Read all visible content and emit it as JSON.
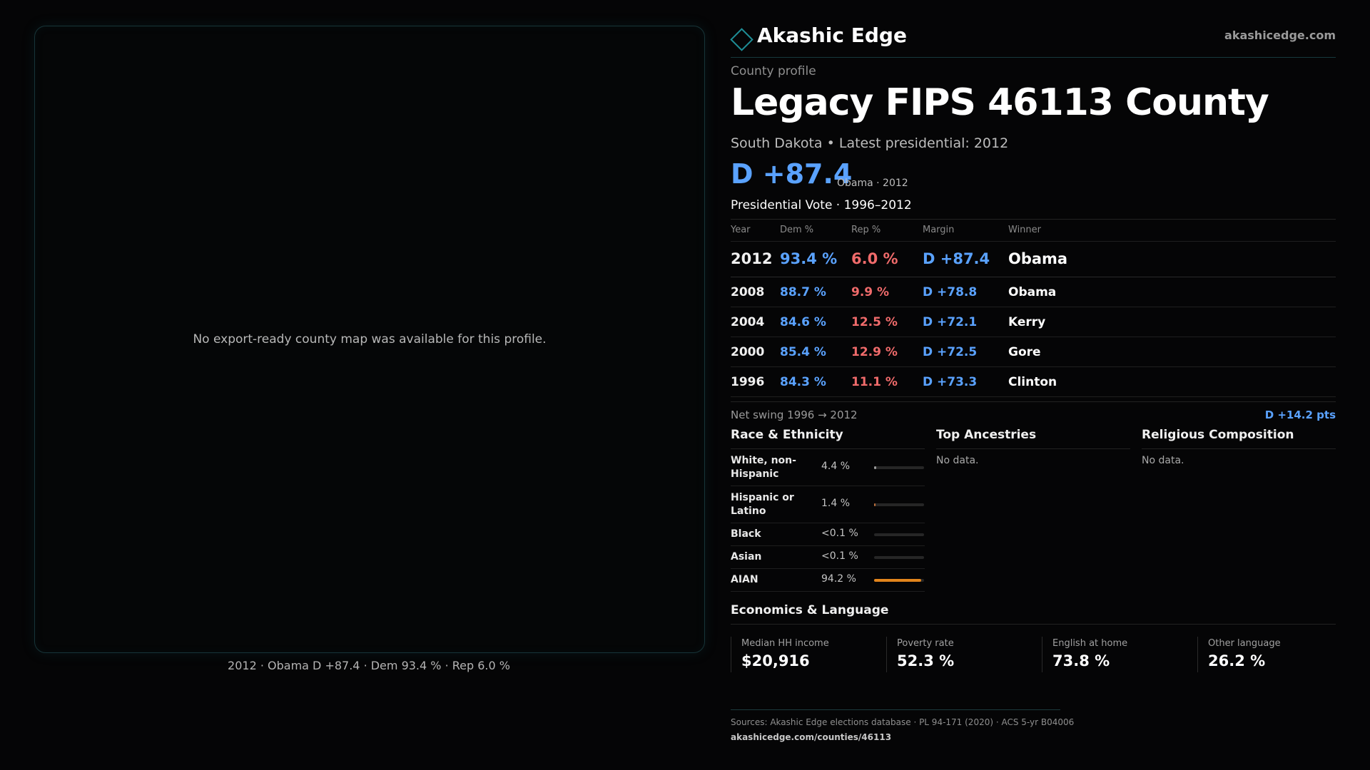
{
  "map": {
    "empty_message": "No export-ready county map was available for this profile.",
    "caption": "2012 · Obama D +87.4 · Dem 93.4 % · Rep 6.0 %"
  },
  "brand": {
    "name": "Akashic Edge",
    "url": "akashicedge.com",
    "logo_icon": "diamond-outline-icon",
    "accent_color": "#1e8d96"
  },
  "profile": {
    "eyebrow": "County profile",
    "title": "Legacy FIPS 46113 County",
    "subtitle": "South Dakota • Latest presidential: 2012",
    "headline_margin": "D +87.4",
    "headline_note": "Obama · 2012"
  },
  "colors": {
    "dem": "#5aa2ff",
    "rep": "#f06b6b",
    "bar_accent": "#e2851c"
  },
  "vote_history": {
    "title": "Presidential Vote · 1996–2012",
    "headers": {
      "year": "Year",
      "dem": "Dem %",
      "rep": "Rep %",
      "margin": "Margin",
      "winner": "Winner"
    },
    "rows": [
      {
        "year": "2012",
        "dem": "93.4 %",
        "rep": "6.0 %",
        "margin": "D +87.4",
        "winner": "Obama"
      },
      {
        "year": "2008",
        "dem": "88.7 %",
        "rep": "9.9 %",
        "margin": "D +78.8",
        "winner": "Obama"
      },
      {
        "year": "2004",
        "dem": "84.6 %",
        "rep": "12.5 %",
        "margin": "D +72.1",
        "winner": "Kerry"
      },
      {
        "year": "2000",
        "dem": "85.4 %",
        "rep": "12.9 %",
        "margin": "D +72.5",
        "winner": "Gore"
      },
      {
        "year": "1996",
        "dem": "84.3 %",
        "rep": "11.1 %",
        "margin": "D +73.3",
        "winner": "Clinton"
      }
    ],
    "swing_label": "Net swing 1996 → 2012",
    "swing_value": "D +14.2 pts"
  },
  "race": {
    "title": "Race & Ethnicity",
    "rows": [
      {
        "label": "White, non-Hispanic",
        "pct": "4.4 %",
        "share": 0.044,
        "color": "#9a9a9a"
      },
      {
        "label": "Hispanic or Latino",
        "pct": "1.4 %",
        "share": 0.014,
        "color": "#c0703a"
      },
      {
        "label": "Black",
        "pct": "<0.1 %",
        "share": 0.0,
        "color": "#9a9a9a"
      },
      {
        "label": "Asian",
        "pct": "<0.1 %",
        "share": 0.0,
        "color": "#9a9a9a"
      },
      {
        "label": "AIAN",
        "pct": "94.2 %",
        "share": 0.942,
        "color": "#e2851c"
      }
    ]
  },
  "ancestries": {
    "title": "Top Ancestries",
    "empty": "No data."
  },
  "religion": {
    "title": "Religious Composition",
    "empty": "No data."
  },
  "economics": {
    "title": "Economics & Language",
    "cards": [
      {
        "label": "Median HH income",
        "value": "$20,916"
      },
      {
        "label": "Poverty rate",
        "value": "52.3 %"
      },
      {
        "label": "English at home",
        "value": "73.8 %"
      },
      {
        "label": "Other language",
        "value": "26.2 %"
      }
    ]
  },
  "footer": {
    "sources": "Sources: Akashic Edge elections database · PL 94-171 (2020) · ACS 5-yr B04006",
    "url": "akashicedge.com/counties/46113"
  }
}
